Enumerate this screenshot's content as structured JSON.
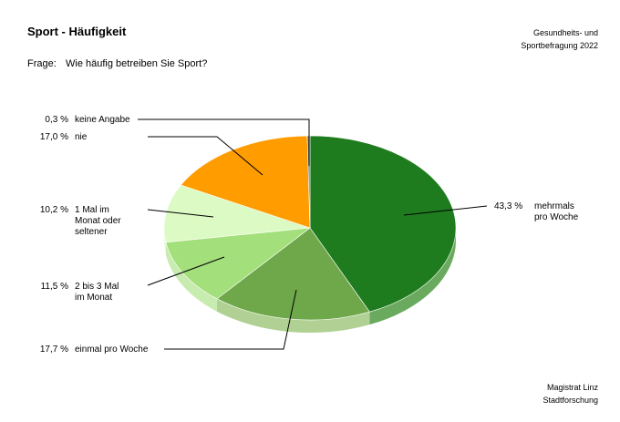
{
  "header": {
    "title": "Sport - Häufigkeit",
    "source_line1": "Gesundheits- und",
    "source_line2": "Sportbefragung 2022"
  },
  "question": {
    "label": "Frage:",
    "text": "Wie häufig betreiben Sie Sport?"
  },
  "footer": {
    "line1": "Magistrat Linz",
    "line2": "Stadtforschung"
  },
  "chart_data": {
    "type": "pie",
    "title": "Sport - Häufigkeit",
    "slices": [
      {
        "label_lines": [
          "mehrmals",
          "pro Woche"
        ],
        "value": 43.3,
        "value_label": "43,3 %",
        "color": "#1e7b1e",
        "side_color": "#6aaa5f"
      },
      {
        "label_lines": [
          "einmal pro Woche"
        ],
        "value": 17.7,
        "value_label": "17,7 %",
        "color": "#6ea84a",
        "side_color": "#b0d193"
      },
      {
        "label_lines": [
          "2 bis 3 Mal",
          "im Monat"
        ],
        "value": 11.5,
        "value_label": "11,5 %",
        "color": "#a3df7b",
        "side_color": "#c8ebb0"
      },
      {
        "label_lines": [
          "1 Mal im",
          "Monat oder",
          "seltener"
        ],
        "value": 10.2,
        "value_label": "10,2 %",
        "color": "#dcfbc4",
        "side_color": "#e9fbdc"
      },
      {
        "label_lines": [
          "nie"
        ],
        "value": 17.0,
        "value_label": "17,0 %",
        "color": "#ff9c00",
        "side_color": "#f2b860"
      },
      {
        "label_lines": [
          "keine Angabe"
        ],
        "value": 0.3,
        "value_label": "0,3 %",
        "color": "#7a7a7a",
        "side_color": "#a0a0a0"
      }
    ]
  }
}
